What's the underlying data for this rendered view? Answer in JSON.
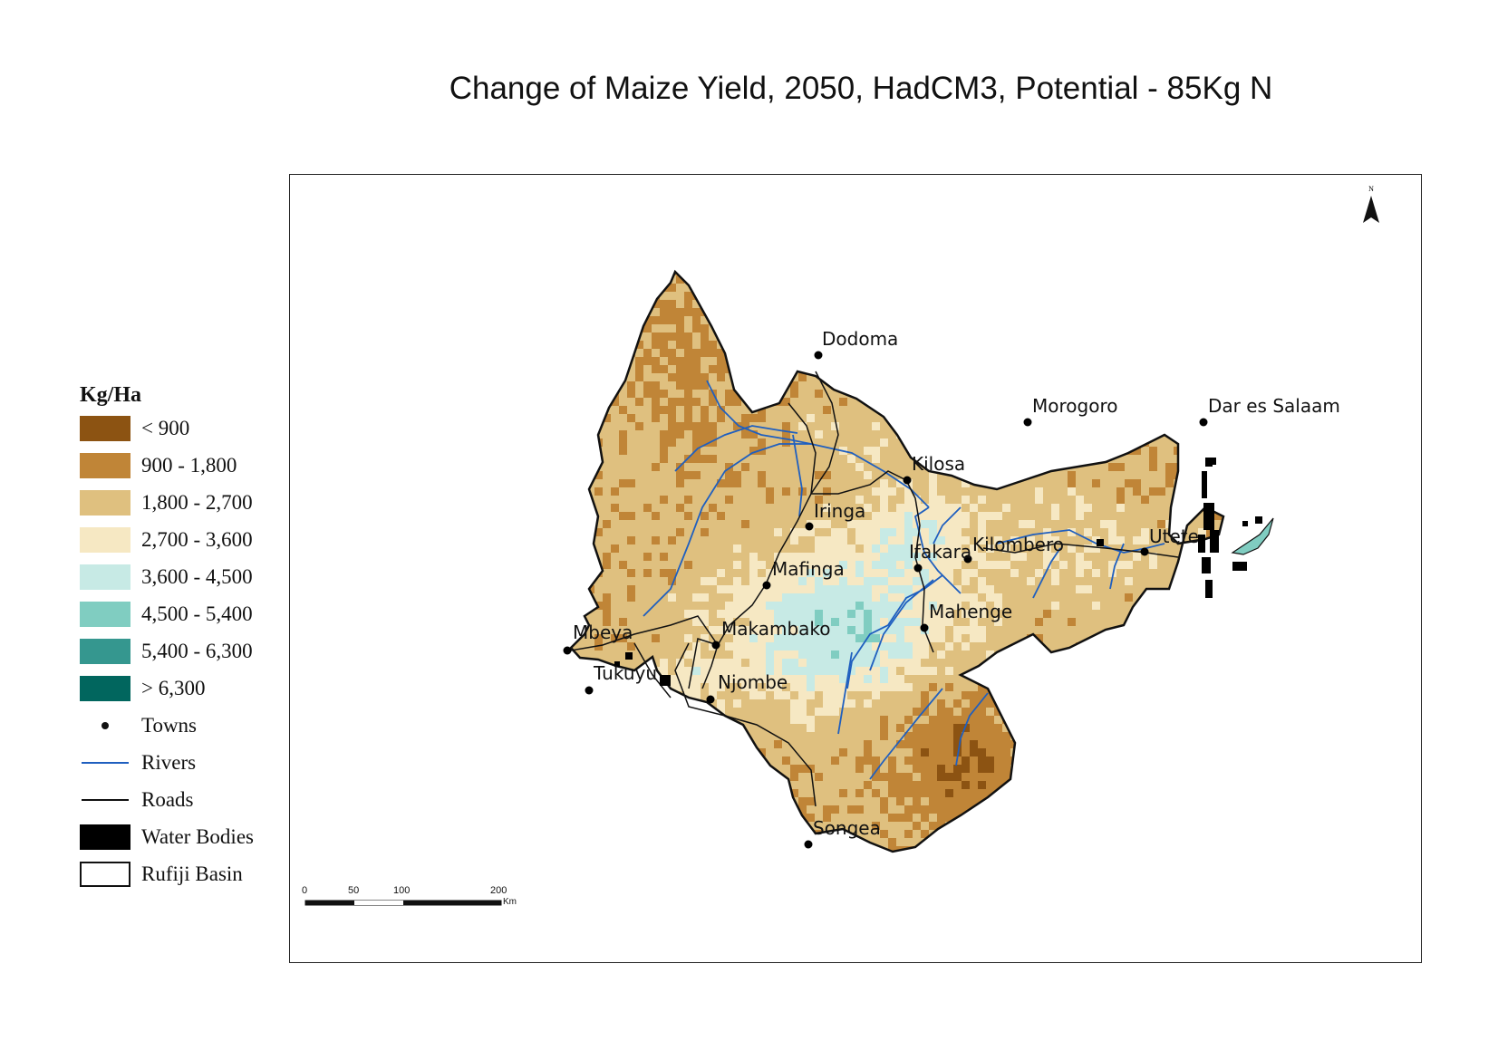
{
  "title": "Change of Maize Yield, 2050, HadCM3, Potential - 85Kg N",
  "north_arrow": {
    "label": "N",
    "icon": "north-arrow-icon"
  },
  "legend": {
    "title": "Kg/Ha",
    "classes": [
      {
        "label": "< 900",
        "color": "#8c5312"
      },
      {
        "label": "900 - 1,800",
        "color": "#c08537"
      },
      {
        "label": "1,800 - 2,700",
        "color": "#dfc07f"
      },
      {
        "label": "2,700 - 3,600",
        "color": "#f6e8c3"
      },
      {
        "label": "3,600 - 4,500",
        "color": "#c7eae5"
      },
      {
        "label": "4,500 - 5,400",
        "color": "#80cdc1"
      },
      {
        "label": "5,400 - 6,300",
        "color": "#35978f"
      },
      {
        "label": "> 6,300",
        "color": "#01665e"
      }
    ],
    "towns": "Towns",
    "rivers": "Rivers",
    "roads": "Roads",
    "water_bodies": "Water Bodies",
    "rufiji_basin": "Rufiji Basin",
    "river_color": "#1f5fbf",
    "road_color": "#111111",
    "water_color": "#000000"
  },
  "towns": [
    {
      "name": "Dodoma"
    },
    {
      "name": "Morogoro"
    },
    {
      "name": "Dar es Salaam"
    },
    {
      "name": "Kilosa"
    },
    {
      "name": "Iringa"
    },
    {
      "name": "Ifakara"
    },
    {
      "name": "Kilombero"
    },
    {
      "name": "Utete"
    },
    {
      "name": "Mafinga"
    },
    {
      "name": "Mahenge"
    },
    {
      "name": "Mbeya"
    },
    {
      "name": "Makambako"
    },
    {
      "name": "Tukuyu"
    },
    {
      "name": "Njombe"
    },
    {
      "name": "Songea"
    }
  ],
  "scale_bar": {
    "ticks": [
      "0",
      "50",
      "100",
      "200"
    ],
    "unit": "Km"
  }
}
